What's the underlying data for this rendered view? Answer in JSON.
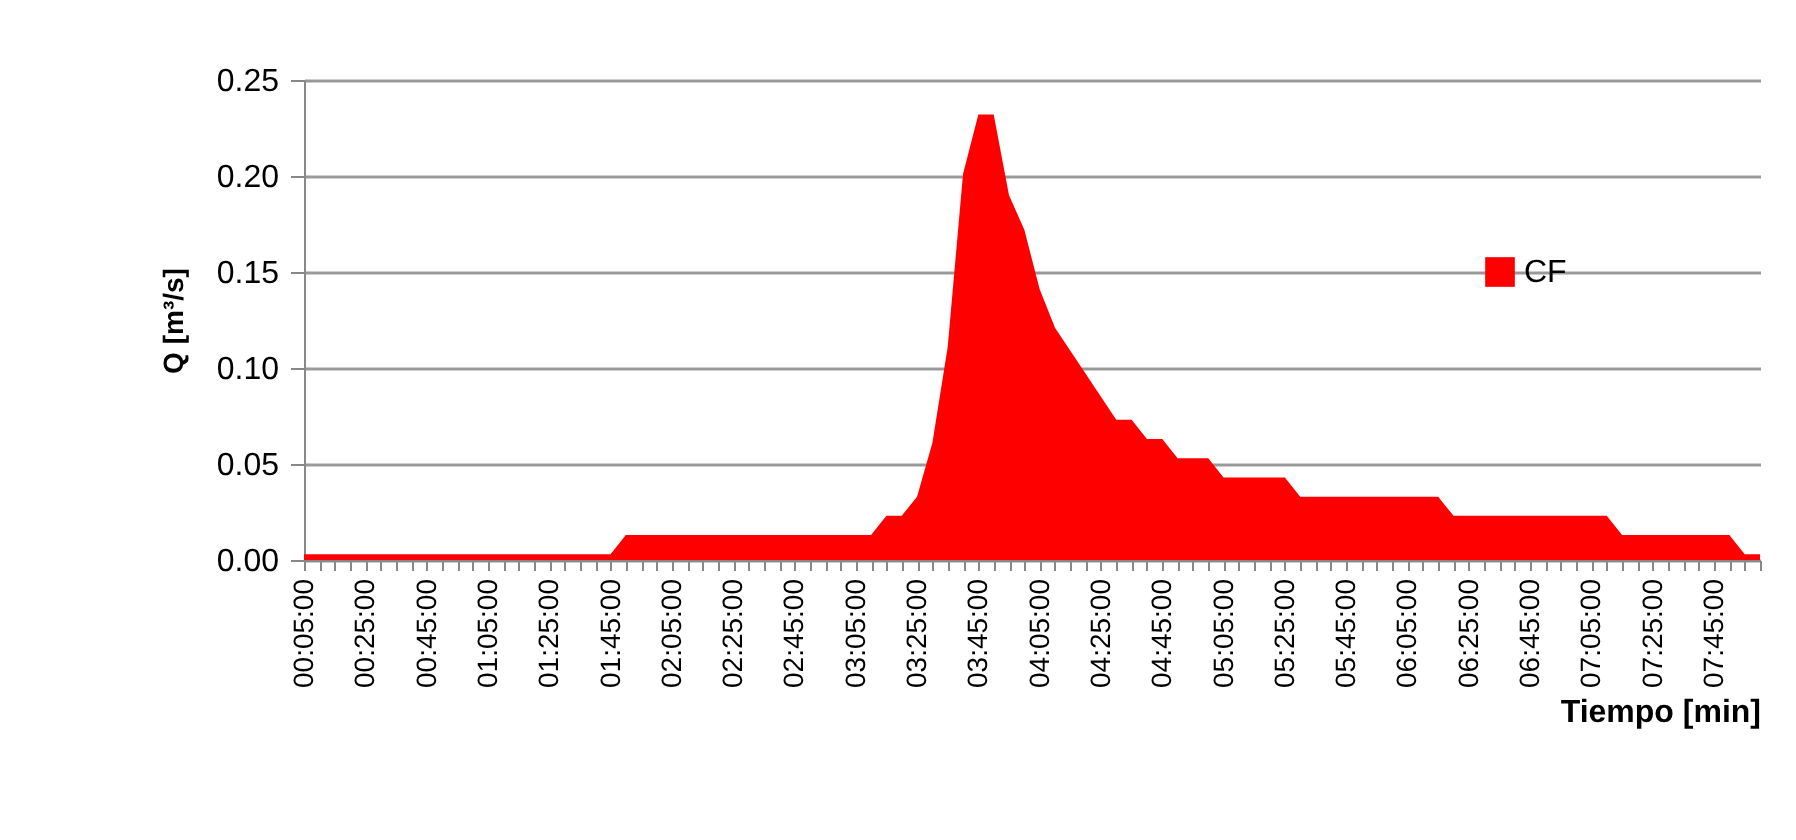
{
  "chart_data": {
    "type": "area",
    "xlabel": "Tiempo [min]",
    "ylabel": "Q [m³/s]",
    "categories": [
      "00:05:00",
      null,
      null,
      null,
      "00:25:00",
      null,
      null,
      null,
      "00:45:00",
      null,
      null,
      null,
      "01:05:00",
      null,
      null,
      null,
      "01:25:00",
      null,
      null,
      null,
      "01:45:00",
      null,
      null,
      null,
      "02:05:00",
      null,
      null,
      null,
      "02:25:00",
      null,
      null,
      null,
      "02:45:00",
      null,
      null,
      null,
      "03:05:00",
      null,
      null,
      null,
      "03:25:00",
      null,
      null,
      null,
      "03:45:00",
      null,
      null,
      null,
      "04:05:00",
      null,
      null,
      null,
      "04:25:00",
      null,
      null,
      null,
      "04:45:00",
      null,
      null,
      null,
      "05:05:00",
      null,
      null,
      null,
      "05:25:00",
      null,
      null,
      null,
      "05:45:00",
      null,
      null,
      null,
      "06:05:00",
      null,
      null,
      null,
      "06:25:00",
      null,
      null,
      null,
      "06:45:00",
      null,
      null,
      null,
      "07:05:00",
      null,
      null,
      null,
      "07:25:00",
      null,
      null,
      null,
      "07:45:00",
      null,
      null,
      null
    ],
    "series": [
      {
        "name": "CF",
        "color": "#ff0000",
        "values": [
          0.003,
          0.003,
          0.003,
          0.003,
          0.003,
          0.003,
          0.003,
          0.003,
          0.003,
          0.003,
          0.003,
          0.003,
          0.003,
          0.003,
          0.003,
          0.003,
          0.003,
          0.003,
          0.003,
          0.003,
          0.003,
          0.013,
          0.013,
          0.013,
          0.013,
          0.013,
          0.013,
          0.013,
          0.013,
          0.013,
          0.013,
          0.013,
          0.013,
          0.013,
          0.013,
          0.013,
          0.013,
          0.013,
          0.023,
          0.023,
          0.033,
          0.061,
          0.111,
          0.201,
          0.232,
          0.232,
          0.19,
          0.172,
          0.141,
          0.121,
          0.109,
          0.097,
          0.085,
          0.073,
          0.073,
          0.063,
          0.063,
          0.053,
          0.053,
          0.053,
          0.043,
          0.043,
          0.043,
          0.043,
          0.043,
          0.033,
          0.033,
          0.033,
          0.033,
          0.033,
          0.033,
          0.033,
          0.033,
          0.033,
          0.033,
          0.023,
          0.023,
          0.023,
          0.023,
          0.023,
          0.023,
          0.023,
          0.023,
          0.023,
          0.023,
          0.023,
          0.013,
          0.013,
          0.013,
          0.013,
          0.013,
          0.013,
          0.013,
          0.013,
          0.003,
          0.003
        ]
      }
    ],
    "ylim": [
      0,
      0.25
    ],
    "yticks": [
      {
        "value": 0,
        "label": "0.00"
      },
      {
        "value": 0.05,
        "label": "0.05"
      },
      {
        "value": 0.1,
        "label": "0.10"
      },
      {
        "value": 0.15,
        "label": "0.15"
      },
      {
        "value": 0.2,
        "label": "0.20"
      },
      {
        "value": 0.25,
        "label": "0.25"
      }
    ],
    "grid": "y",
    "legend": "right"
  }
}
